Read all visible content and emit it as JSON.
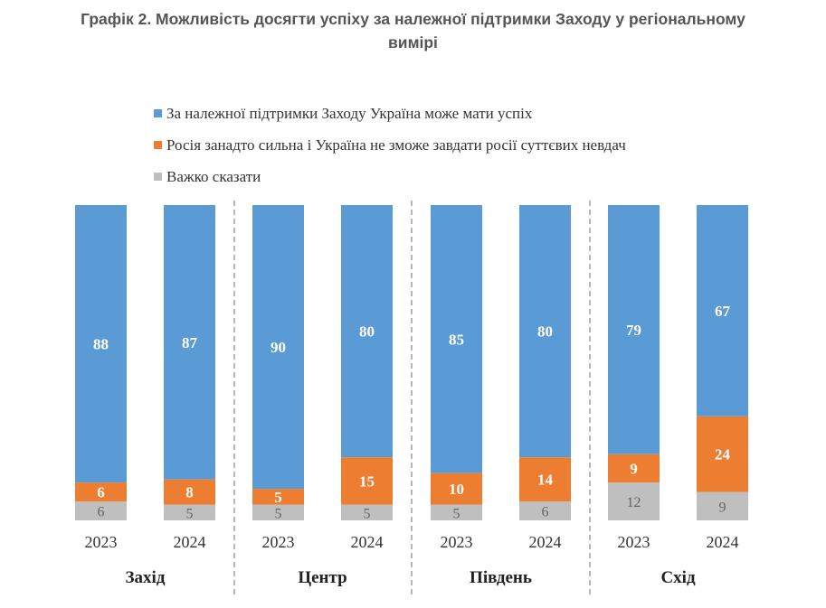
{
  "chart_data": {
    "type": "bar",
    "stacked": true,
    "title": "Графік 2. Можливість досягти успіху за належної підтримки Заходу у регіональному вимірі",
    "title_lines": [
      "Графік 2. Можливість досягти успіху за належної підтримки Заходу у регіональному",
      "вимірі"
    ],
    "legend_position": "top",
    "groups": [
      "Захід",
      "Центр",
      "Південь",
      "Схід"
    ],
    "categories": [
      "2023",
      "2024",
      "2023",
      "2024",
      "2023",
      "2024",
      "2023",
      "2024"
    ],
    "series": [
      {
        "name": "За належної підтримки Заходу Україна може мати успіх",
        "color": "#5b9bd5",
        "values": [
          88,
          87,
          90,
          80,
          85,
          80,
          79,
          67
        ]
      },
      {
        "name": "Росія занадто сильна і Україна не зможе завдати росії суттєвих невдач",
        "color": "#ed7d31",
        "values": [
          6,
          8,
          5,
          15,
          10,
          14,
          9,
          24
        ]
      },
      {
        "name": "Важко сказати",
        "color": "#bfbfbf",
        "values": [
          6,
          5,
          5,
          5,
          5,
          6,
          12,
          9
        ]
      }
    ],
    "ylim": [
      0,
      100
    ],
    "grid": false,
    "xlabel": "",
    "ylabel": ""
  }
}
